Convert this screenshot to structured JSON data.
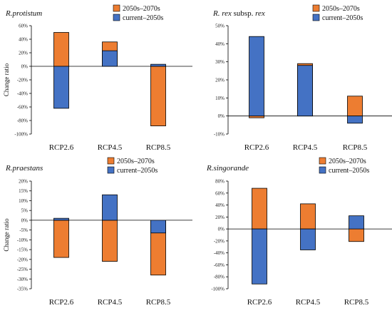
{
  "colors": {
    "orange": "#ED7D31",
    "blue": "#4472C4"
  },
  "chart_data": [
    {
      "type": "bar",
      "title": "R.protistum",
      "title_parts": [],
      "ylabel": "Change ratio",
      "categories": [
        "RCP2.6",
        "RCP4.5",
        "RCP8.5"
      ],
      "ylim": [
        -100,
        60
      ],
      "ystep": 20,
      "legend_position": "top-right",
      "series": [
        {
          "name": "2050s–2070s",
          "color": "#ED7D31",
          "values": [
            50,
            36,
            -88
          ]
        },
        {
          "name": "current–2050s",
          "color": "#4472C4",
          "values": [
            -62,
            23,
            3
          ]
        }
      ]
    },
    {
      "type": "bar",
      "title": "R. rex subsp. rex",
      "title_parts": [
        {
          "text": "R. rex ",
          "italic": true
        },
        {
          "text": "subsp. ",
          "italic": false
        },
        {
          "text": "rex",
          "italic": true
        }
      ],
      "ylabel": "",
      "categories": [
        "RCP2.6",
        "RCP4.5",
        "RCP8.5"
      ],
      "ylim": [
        -10,
        50
      ],
      "ystep": 10,
      "legend_position": "top-right",
      "series": [
        {
          "name": "2050s–2070s",
          "color": "#ED7D31",
          "values": [
            -1,
            29,
            11
          ]
        },
        {
          "name": "current–2050s",
          "color": "#4472C4",
          "values": [
            44,
            28,
            -4
          ]
        }
      ]
    },
    {
      "type": "bar",
      "title": "R.praestans",
      "title_parts": [],
      "ylabel": "Change ratio",
      "categories": [
        "RCP2.6",
        "RCP4.5",
        "RCP8.5"
      ],
      "ylim": [
        -35,
        20
      ],
      "ystep": 5,
      "legend_position": "top-right",
      "series": [
        {
          "name": "2050s–2070s",
          "color": "#ED7D31",
          "values": [
            -19,
            -21,
            -28
          ]
        },
        {
          "name": "current–2050s",
          "color": "#4472C4",
          "values": [
            1,
            13,
            -6.5
          ]
        }
      ]
    },
    {
      "type": "bar",
      "title": "R.singorande",
      "title_parts": [],
      "ylabel": "",
      "categories": [
        "RCP2.6",
        "RCP4.5",
        "RCP8.5"
      ],
      "ylim": [
        -100,
        80
      ],
      "ystep": 20,
      "legend_position": "top-right",
      "series": [
        {
          "name": "2050s–2070s",
          "color": "#ED7D31",
          "values": [
            68,
            42,
            -21
          ]
        },
        {
          "name": "current–2050s",
          "color": "#4472C4",
          "values": [
            -92,
            -35,
            22
          ]
        }
      ]
    }
  ]
}
